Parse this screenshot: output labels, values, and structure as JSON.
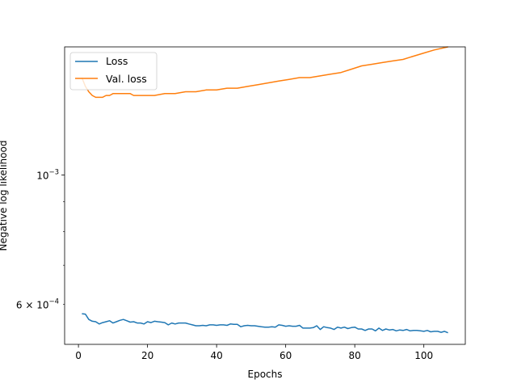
{
  "chart_data": {
    "type": "line",
    "title": "",
    "xlabel": "Epochs",
    "ylabel": "Negative log likelihood",
    "yscale": "log",
    "xlim": [
      -4,
      112
    ],
    "ylim": [
      0.000512,
      0.00166
    ],
    "grid": false,
    "legend_position": "top-left",
    "x_ticks": [
      0,
      20,
      40,
      60,
      80,
      100
    ],
    "x_tick_labels": [
      "0",
      "20",
      "40",
      "60",
      "80",
      "100"
    ],
    "y_major_tick": {
      "value": 0.001,
      "base": "10",
      "exponent": "−3"
    },
    "y_labeled_minor_tick": {
      "value": 0.0006,
      "mantissa": "6",
      "times": "×",
      "base": "10",
      "exponent": "−4"
    },
    "y_minor_ticks": [
      0.0006,
      0.0007,
      0.0008,
      0.0009
    ],
    "series": [
      {
        "name": "Loss",
        "color": "#1f77b4",
        "x": [
          1,
          2,
          3,
          4,
          5,
          6,
          7,
          8,
          9,
          10,
          11,
          12,
          13,
          14,
          15,
          16,
          17,
          18,
          19,
          20,
          21,
          22,
          23,
          24,
          25,
          26,
          27,
          28,
          29,
          30,
          31,
          32,
          33,
          34,
          35,
          36,
          37,
          38,
          39,
          40,
          41,
          42,
          43,
          44,
          45,
          46,
          47,
          48,
          49,
          50,
          51,
          52,
          53,
          54,
          55,
          56,
          57,
          58,
          59,
          60,
          61,
          62,
          63,
          64,
          65,
          66,
          67,
          68,
          69,
          70,
          71,
          72,
          73,
          74,
          75,
          76,
          77,
          78,
          79,
          80,
          81,
          82,
          83,
          84,
          85,
          86,
          87,
          88,
          89,
          90,
          91,
          92,
          93,
          94,
          95,
          96,
          97,
          98,
          99,
          100,
          101,
          102,
          103,
          104,
          105,
          106,
          107
        ],
        "values": [
          0.000578,
          0.000577,
          0.000565,
          0.000561,
          0.00056,
          0.000555,
          0.000558,
          0.00056,
          0.000562,
          0.000557,
          0.00056,
          0.000563,
          0.000565,
          0.000562,
          0.000559,
          0.00056,
          0.000557,
          0.000557,
          0.000555,
          0.00056,
          0.000558,
          0.000561,
          0.00056,
          0.000559,
          0.000558,
          0.000553,
          0.000557,
          0.000555,
          0.000557,
          0.000557,
          0.000557,
          0.000555,
          0.000553,
          0.000551,
          0.000551,
          0.000552,
          0.000551,
          0.000553,
          0.000553,
          0.000552,
          0.000553,
          0.000553,
          0.000552,
          0.000555,
          0.000554,
          0.000554,
          0.000549,
          0.000551,
          0.000552,
          0.000551,
          0.000551,
          0.00055,
          0.000549,
          0.000548,
          0.000548,
          0.000549,
          0.000548,
          0.000553,
          0.000552,
          0.00055,
          0.000551,
          0.00055,
          0.00055,
          0.000552,
          0.000546,
          0.000546,
          0.000546,
          0.000547,
          0.000551,
          0.000543,
          0.000549,
          0.000547,
          0.000546,
          0.000543,
          0.000548,
          0.000546,
          0.000548,
          0.000545,
          0.000547,
          0.000548,
          0.000544,
          0.000544,
          0.000541,
          0.000544,
          0.000544,
          0.00054,
          0.000546,
          0.000541,
          0.000544,
          0.000542,
          0.000543,
          0.00054,
          0.000542,
          0.000541,
          0.000543,
          0.00054,
          0.000541,
          0.000541,
          0.00054,
          0.000539,
          0.000541,
          0.000538,
          0.000539,
          0.000539,
          0.000537,
          0.000539,
          0.000536
        ]
      },
      {
        "name": "Val. loss",
        "color": "#ff7f0e",
        "x": [
          1,
          2,
          3,
          4,
          5,
          6,
          7,
          8,
          9,
          10,
          11,
          12,
          13,
          14,
          15,
          16,
          17,
          18,
          19,
          20,
          22,
          25,
          28,
          31,
          34,
          37,
          40,
          43,
          46,
          49,
          52,
          55,
          58,
          61,
          64,
          67,
          70,
          73,
          76,
          79,
          82,
          85,
          88,
          91,
          94,
          97,
          100,
          103,
          107
        ],
        "values": [
          0.00147,
          0.00142,
          0.00139,
          0.00137,
          0.00136,
          0.00136,
          0.00136,
          0.00137,
          0.00137,
          0.00138,
          0.00138,
          0.00138,
          0.00138,
          0.00138,
          0.00138,
          0.00137,
          0.00137,
          0.00137,
          0.00137,
          0.00137,
          0.00137,
          0.00138,
          0.00138,
          0.00139,
          0.00139,
          0.0014,
          0.0014,
          0.00141,
          0.00141,
          0.00142,
          0.00143,
          0.00144,
          0.00145,
          0.00146,
          0.00147,
          0.00147,
          0.00148,
          0.00149,
          0.0015,
          0.00152,
          0.00154,
          0.00155,
          0.00156,
          0.00157,
          0.00158,
          0.0016,
          0.00162,
          0.00164,
          0.00166
        ]
      }
    ]
  }
}
